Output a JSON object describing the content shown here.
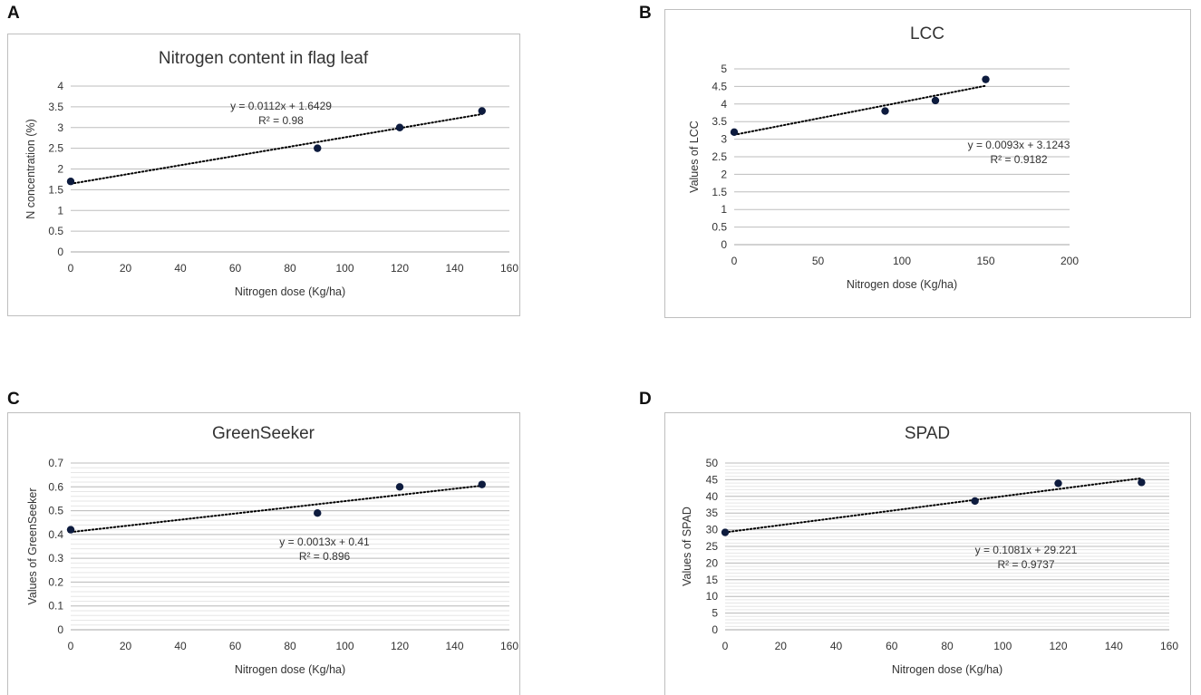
{
  "panels": [
    {
      "letter": "A"
    },
    {
      "letter": "B"
    },
    {
      "letter": "C"
    },
    {
      "letter": "D"
    }
  ],
  "chart_data": [
    {
      "type": "scatter",
      "title": "Nitrogen content in flag leaf",
      "xlabel": "Nitrogen dose (Kg/ha)",
      "ylabel": "N concentration (%)",
      "x": [
        0,
        90,
        120,
        150
      ],
      "y": [
        1.7,
        2.5,
        3.0,
        3.4
      ],
      "xlim": [
        0,
        160
      ],
      "ylim": [
        0,
        4
      ],
      "xticks": [
        0,
        20,
        40,
        60,
        80,
        100,
        120,
        140,
        160
      ],
      "yticks": [
        "0",
        "0.5",
        "1",
        "1.5",
        "2",
        "2.5",
        "3",
        "3.5",
        "4"
      ],
      "grid": "major",
      "trendline": {
        "slope": 0.0112,
        "intercept": 1.6429,
        "equation": "y = 0.0112x + 1.6429",
        "r2": "R² = 0.98"
      },
      "marker_color": "#0d1b3e"
    },
    {
      "type": "scatter",
      "title": "LCC",
      "xlabel": "Nitrogen dose (Kg/ha)",
      "ylabel": "Values of LCC",
      "x": [
        0,
        90,
        120,
        150
      ],
      "y": [
        3.2,
        3.8,
        4.1,
        4.7
      ],
      "xlim": [
        0,
        200
      ],
      "ylim": [
        0,
        5
      ],
      "xticks": [
        0,
        50,
        100,
        150,
        200
      ],
      "yticks": [
        "0",
        "0.5",
        "1",
        "1.5",
        "2",
        "2.5",
        "3",
        "3.5",
        "4",
        "4.5",
        "5"
      ],
      "grid": "major",
      "trendline": {
        "slope": 0.0093,
        "intercept": 3.1243,
        "equation": "y = 0.0093x + 3.1243",
        "r2": "R² = 0.9182"
      },
      "marker_color": "#0d1b3e"
    },
    {
      "type": "scatter",
      "title": "GreenSeeker",
      "xlabel": "Nitrogen dose (Kg/ha)",
      "ylabel": "Values of GreenSeeker",
      "x": [
        0,
        90,
        120,
        150
      ],
      "y": [
        0.42,
        0.49,
        0.6,
        0.61
      ],
      "xlim": [
        0,
        160
      ],
      "ylim": [
        0,
        0.7
      ],
      "xticks": [
        0,
        20,
        40,
        60,
        80,
        100,
        120,
        140,
        160
      ],
      "yticks": [
        "0",
        "0.1",
        "0.2",
        "0.3",
        "0.4",
        "0.5",
        "0.6",
        "0.7"
      ],
      "grid": "major+minor",
      "trendline": {
        "slope": 0.0013,
        "intercept": 0.41,
        "equation": "y = 0.0013x + 0.41",
        "r2": "R² = 0.896"
      },
      "marker_color": "#0d1b3e"
    },
    {
      "type": "scatter",
      "title": "SPAD",
      "xlabel": "Nitrogen dose (Kg/ha)",
      "ylabel": "Values of SPAD",
      "x": [
        0,
        90,
        120,
        150
      ],
      "y": [
        29.2,
        38.6,
        43.9,
        44.2
      ],
      "xlim": [
        0,
        160
      ],
      "ylim": [
        0,
        50
      ],
      "xticks": [
        0,
        20,
        40,
        60,
        80,
        100,
        120,
        140,
        160
      ],
      "yticks": [
        "0",
        "5",
        "10",
        "15",
        "20",
        "25",
        "30",
        "35",
        "40",
        "45",
        "50"
      ],
      "grid": "major+minor",
      "trendline": {
        "slope": 0.1081,
        "intercept": 29.221,
        "equation": "y = 0.1081x + 29.221",
        "r2": "R² = 0.9737"
      },
      "marker_color": "#0d1b3e"
    }
  ]
}
